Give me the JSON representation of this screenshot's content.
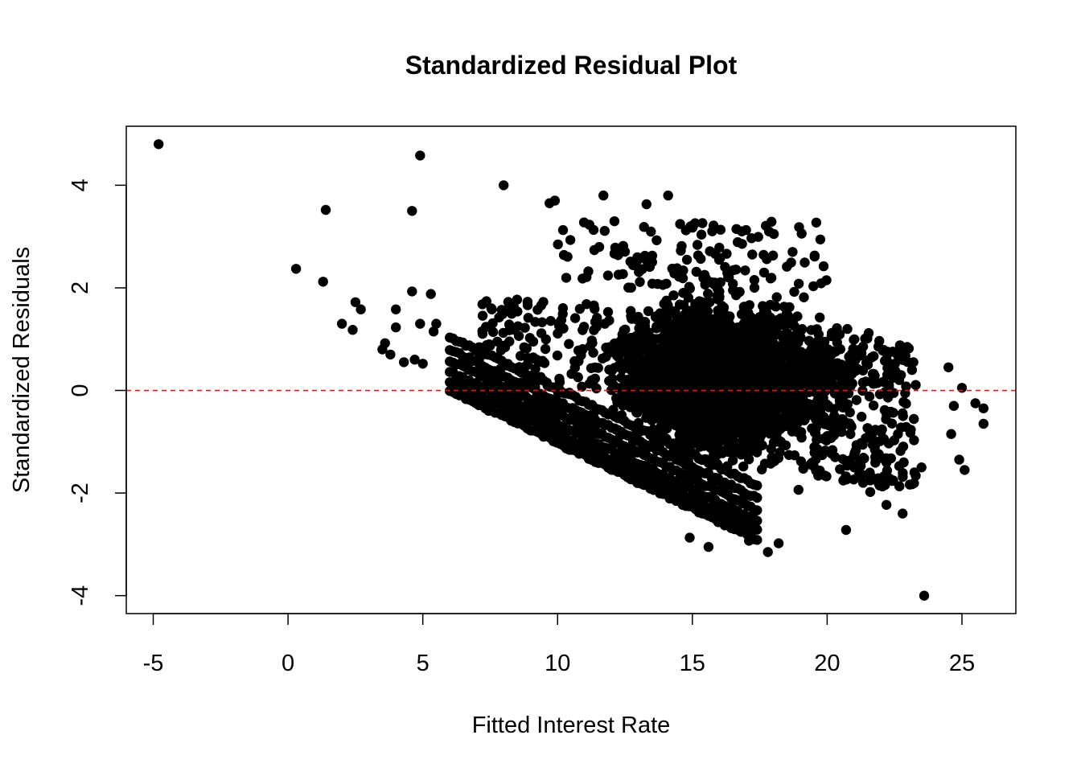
{
  "chart_data": {
    "type": "scatter",
    "title": "Standardized Residual Plot",
    "xlabel": "Fitted Interest Rate",
    "ylabel": "Standardized Residuals",
    "xlim": [
      -6,
      27
    ],
    "ylim": [
      -4.35,
      5.15
    ],
    "x_ticks": [
      -5,
      0,
      5,
      10,
      15,
      20,
      25
    ],
    "x_tick_labels": [
      "-5",
      "0",
      "5",
      "10",
      "15",
      "20",
      "25"
    ],
    "y_ticks": [
      -4,
      -2,
      0,
      2,
      4
    ],
    "y_tick_labels": [
      "-4",
      "-2",
      "0",
      "2",
      "4"
    ],
    "reference_line": {
      "y": 0,
      "style": "dashed",
      "color": "#e31a1c"
    },
    "point_color": "#000000",
    "grid": false,
    "points": [
      [
        -4.8,
        4.8
      ],
      [
        4.9,
        4.58
      ],
      [
        8.0,
        4.0
      ],
      [
        1.4,
        3.52
      ],
      [
        4.6,
        3.5
      ],
      [
        0.3,
        2.37
      ],
      [
        1.3,
        2.12
      ],
      [
        2.5,
        1.72
      ],
      [
        2.7,
        1.58
      ],
      [
        2.0,
        1.3
      ],
      [
        2.4,
        1.18
      ],
      [
        4.0,
        1.58
      ],
      [
        4.6,
        1.93
      ],
      [
        5.3,
        1.88
      ],
      [
        4.0,
        1.23
      ],
      [
        4.9,
        1.3
      ],
      [
        3.6,
        0.92
      ],
      [
        3.5,
        0.8
      ],
      [
        3.8,
        0.7
      ],
      [
        4.3,
        0.55
      ],
      [
        4.7,
        0.6
      ],
      [
        5.0,
        0.52
      ],
      [
        5.5,
        1.3
      ],
      [
        5.4,
        1.15
      ],
      [
        9.7,
        3.65
      ],
      [
        9.9,
        3.7
      ],
      [
        11.7,
        3.8
      ],
      [
        13.3,
        3.63
      ],
      [
        14.1,
        3.8
      ],
      [
        23.6,
        -4.0
      ],
      [
        17.8,
        -3.15
      ],
      [
        18.2,
        -2.98
      ],
      [
        15.6,
        -3.05
      ],
      [
        14.9,
        -2.87
      ],
      [
        17.1,
        -2.93
      ],
      [
        20.7,
        -2.72
      ],
      [
        22.8,
        -2.4
      ],
      [
        22.2,
        -2.23
      ],
      [
        21.6,
        -1.98
      ],
      [
        25.1,
        -1.55
      ],
      [
        24.9,
        -1.35
      ],
      [
        23.5,
        -1.5
      ],
      [
        25.8,
        -0.65
      ],
      [
        25.8,
        -0.35
      ],
      [
        25.5,
        -0.25
      ],
      [
        24.6,
        -0.85
      ],
      [
        24.5,
        0.45
      ],
      [
        23.2,
        0.55
      ],
      [
        22.7,
        0.88
      ],
      [
        25.0,
        0.05
      ],
      [
        24.7,
        -0.3
      ]
    ],
    "cluster_note": "dense cloud of several thousand points spanning fitted 6-24 and residuals -3 to 3.4, bounded below by parallel diagonal bands"
  }
}
